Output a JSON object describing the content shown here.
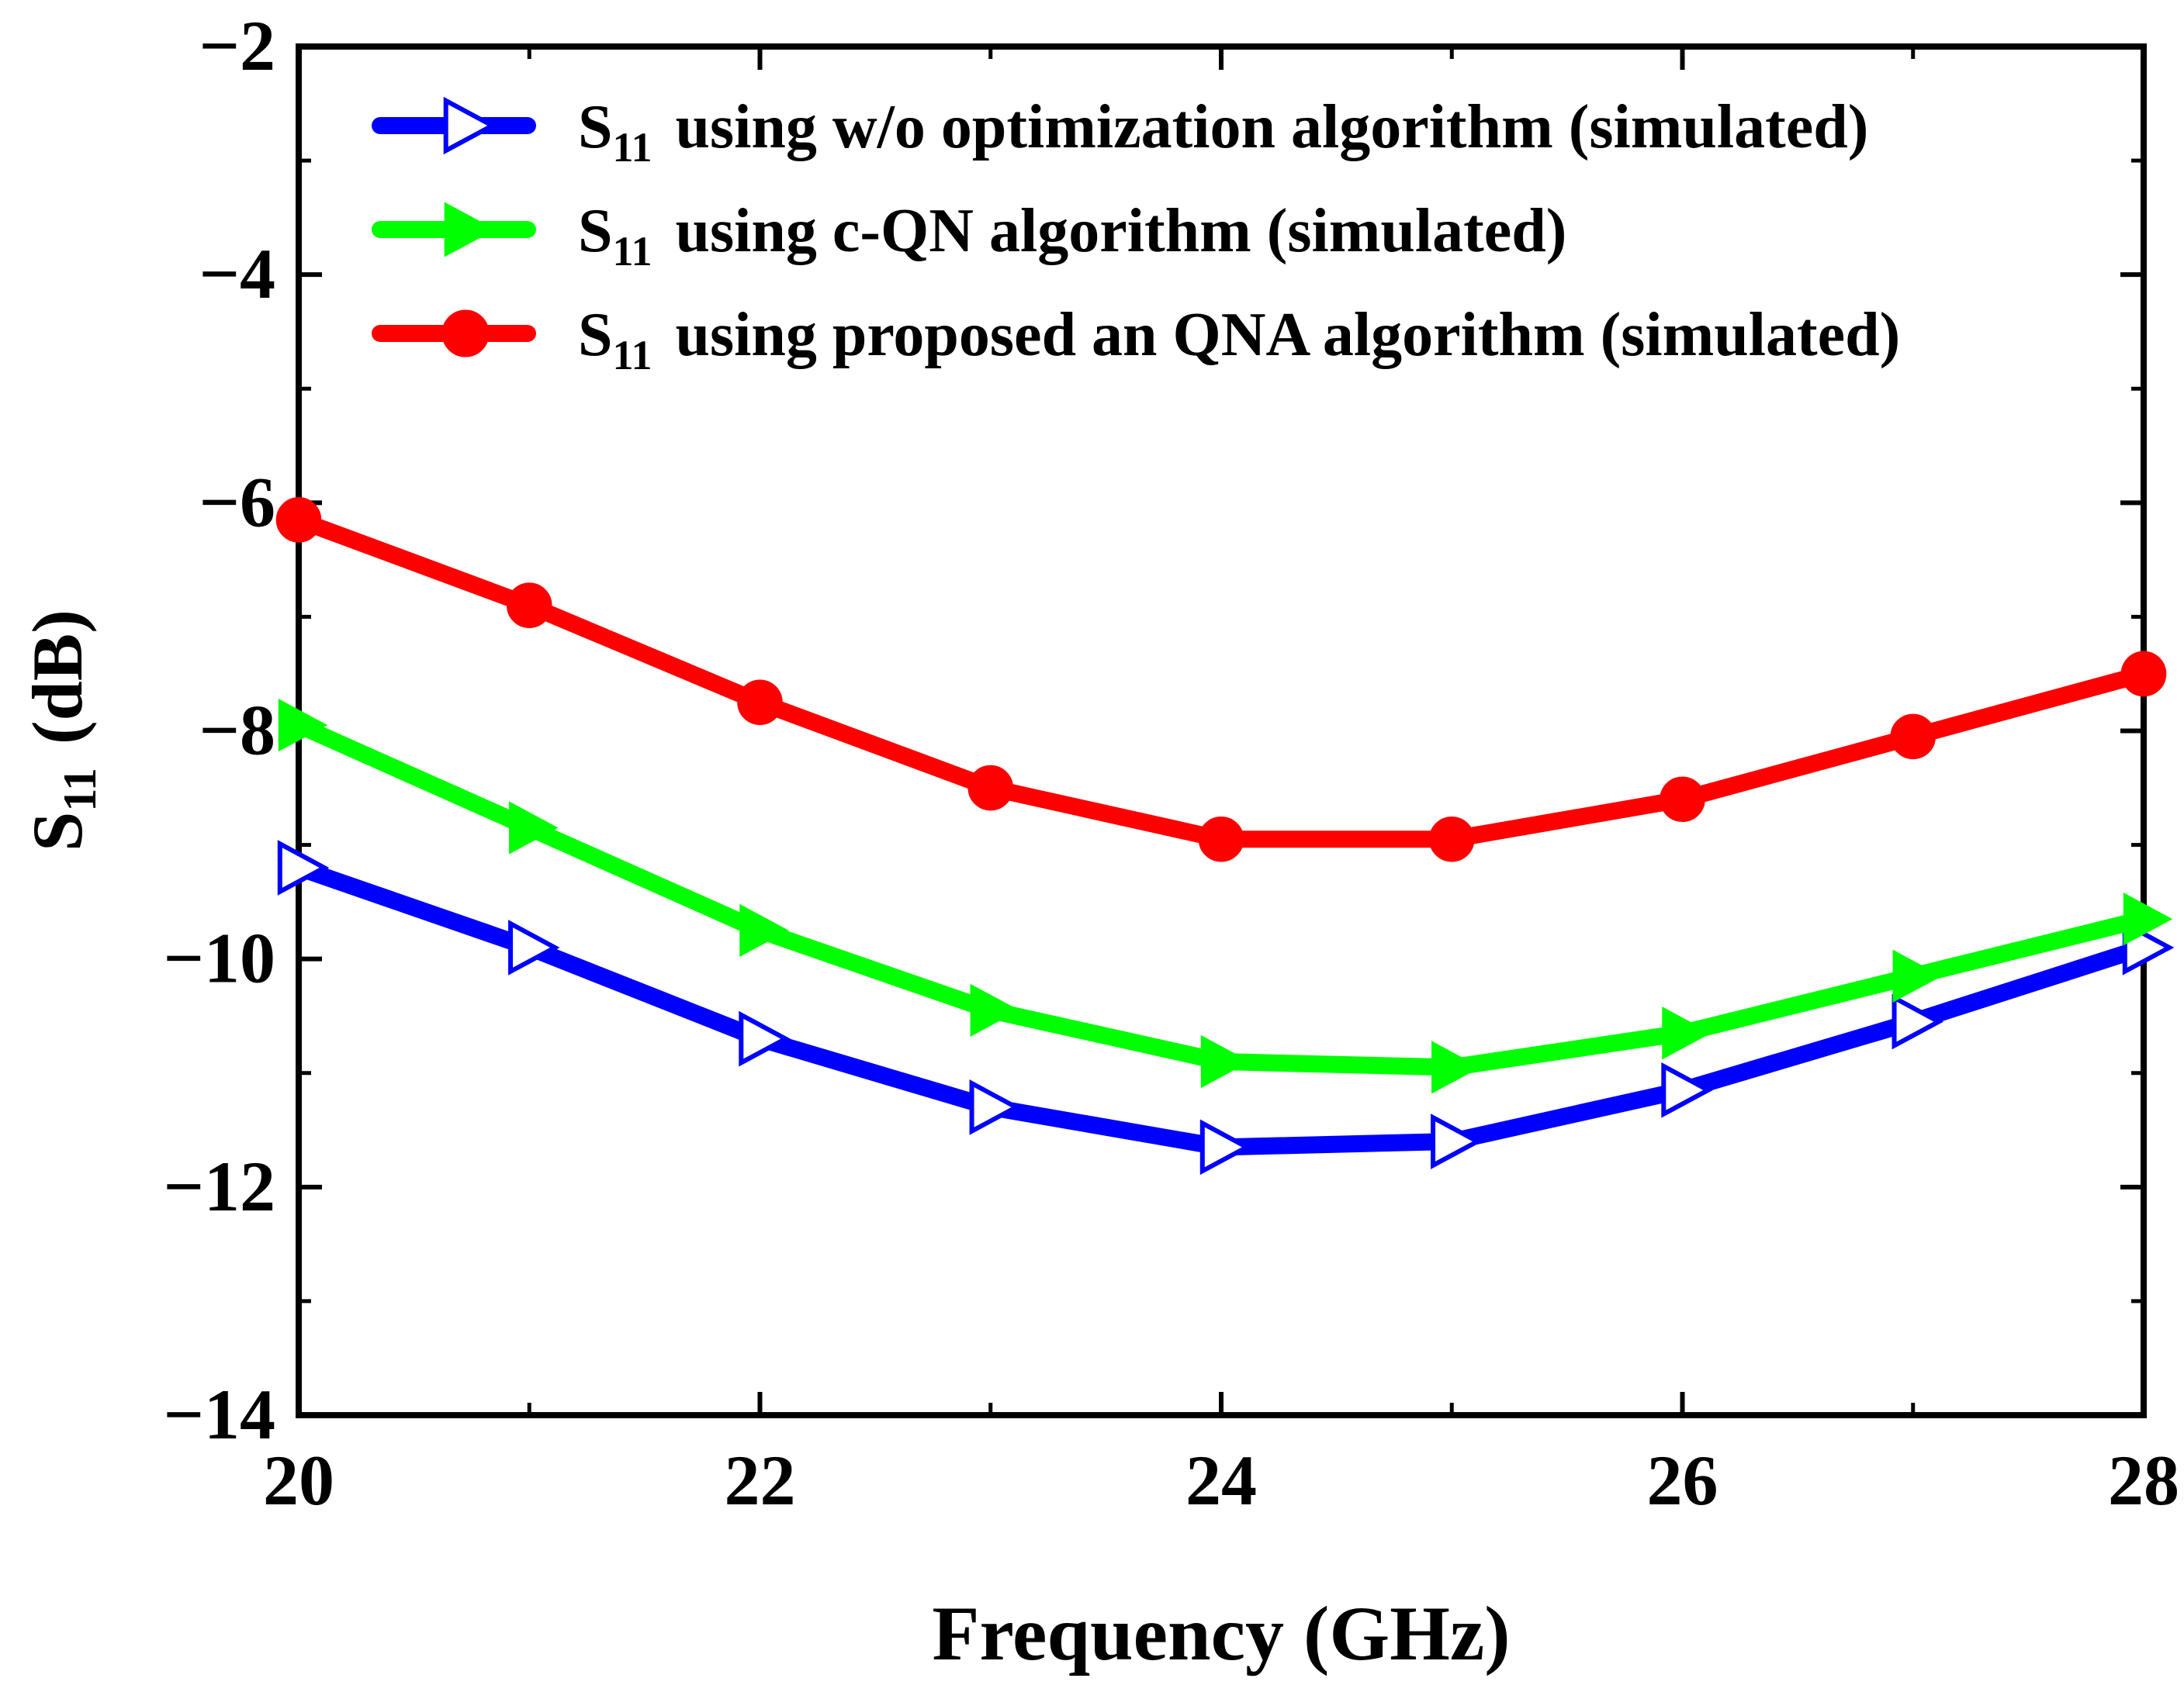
{
  "chart_data": {
    "type": "line",
    "title": "",
    "xlabel": "Frequency (GHz)",
    "ylabel": {
      "main": "S",
      "sub": "11",
      "unit": "(dB)"
    },
    "xlim": [
      20,
      28
    ],
    "ylim": [
      -14,
      -2
    ],
    "xticks": [
      20,
      22,
      24,
      26,
      28
    ],
    "xtick_labels": [
      "20",
      "22",
      "24",
      "26",
      "28"
    ],
    "yticks": [
      -2,
      -4,
      -6,
      -8,
      -10,
      -12,
      -14
    ],
    "ytick_labels": [
      "−2",
      "−4",
      "−6",
      "−8",
      "−10",
      "−12",
      "−14"
    ],
    "grid": false,
    "legend_position": "top-left",
    "series": [
      {
        "name": "S11 using w/o optimization algorithm (simulated)",
        "legend_main": "S",
        "legend_sub": "11",
        "legend_rest": "using w/o optimization algorithm (simulated)",
        "color": "#0000ff",
        "marker": "open-triangle-right",
        "x": [
          20,
          21,
          22,
          23,
          24,
          25,
          26,
          27,
          28
        ],
        "values": [
          -9.2,
          -9.9,
          -10.7,
          -11.3,
          -11.65,
          -11.6,
          -11.15,
          -10.55,
          -9.9
        ]
      },
      {
        "name": "S11 using c-QN algorithm (simulated)",
        "legend_main": "S",
        "legend_sub": "11",
        "legend_rest": "using c-QN algorithm (simulated)",
        "color": "#00ff00",
        "marker": "filled-triangle-right",
        "x": [
          20,
          21,
          22,
          23,
          24,
          25,
          26,
          27,
          28
        ],
        "values": [
          -7.95,
          -8.85,
          -9.75,
          -10.45,
          -10.9,
          -10.95,
          -10.65,
          -10.15,
          -9.65
        ]
      },
      {
        "name": "S11 using proposed an QNA algorithm (simulated)",
        "legend_main": "S",
        "legend_sub": "11",
        "legend_rest": "using proposed an QNA algorithm (simulated)",
        "color": "#ff0000",
        "marker": "filled-circle",
        "x": [
          20,
          21,
          22,
          23,
          24,
          25,
          26,
          27,
          28
        ],
        "values": [
          -6.15,
          -6.9,
          -7.75,
          -8.5,
          -8.95,
          -8.95,
          -8.6,
          -8.05,
          -7.5
        ]
      }
    ]
  }
}
